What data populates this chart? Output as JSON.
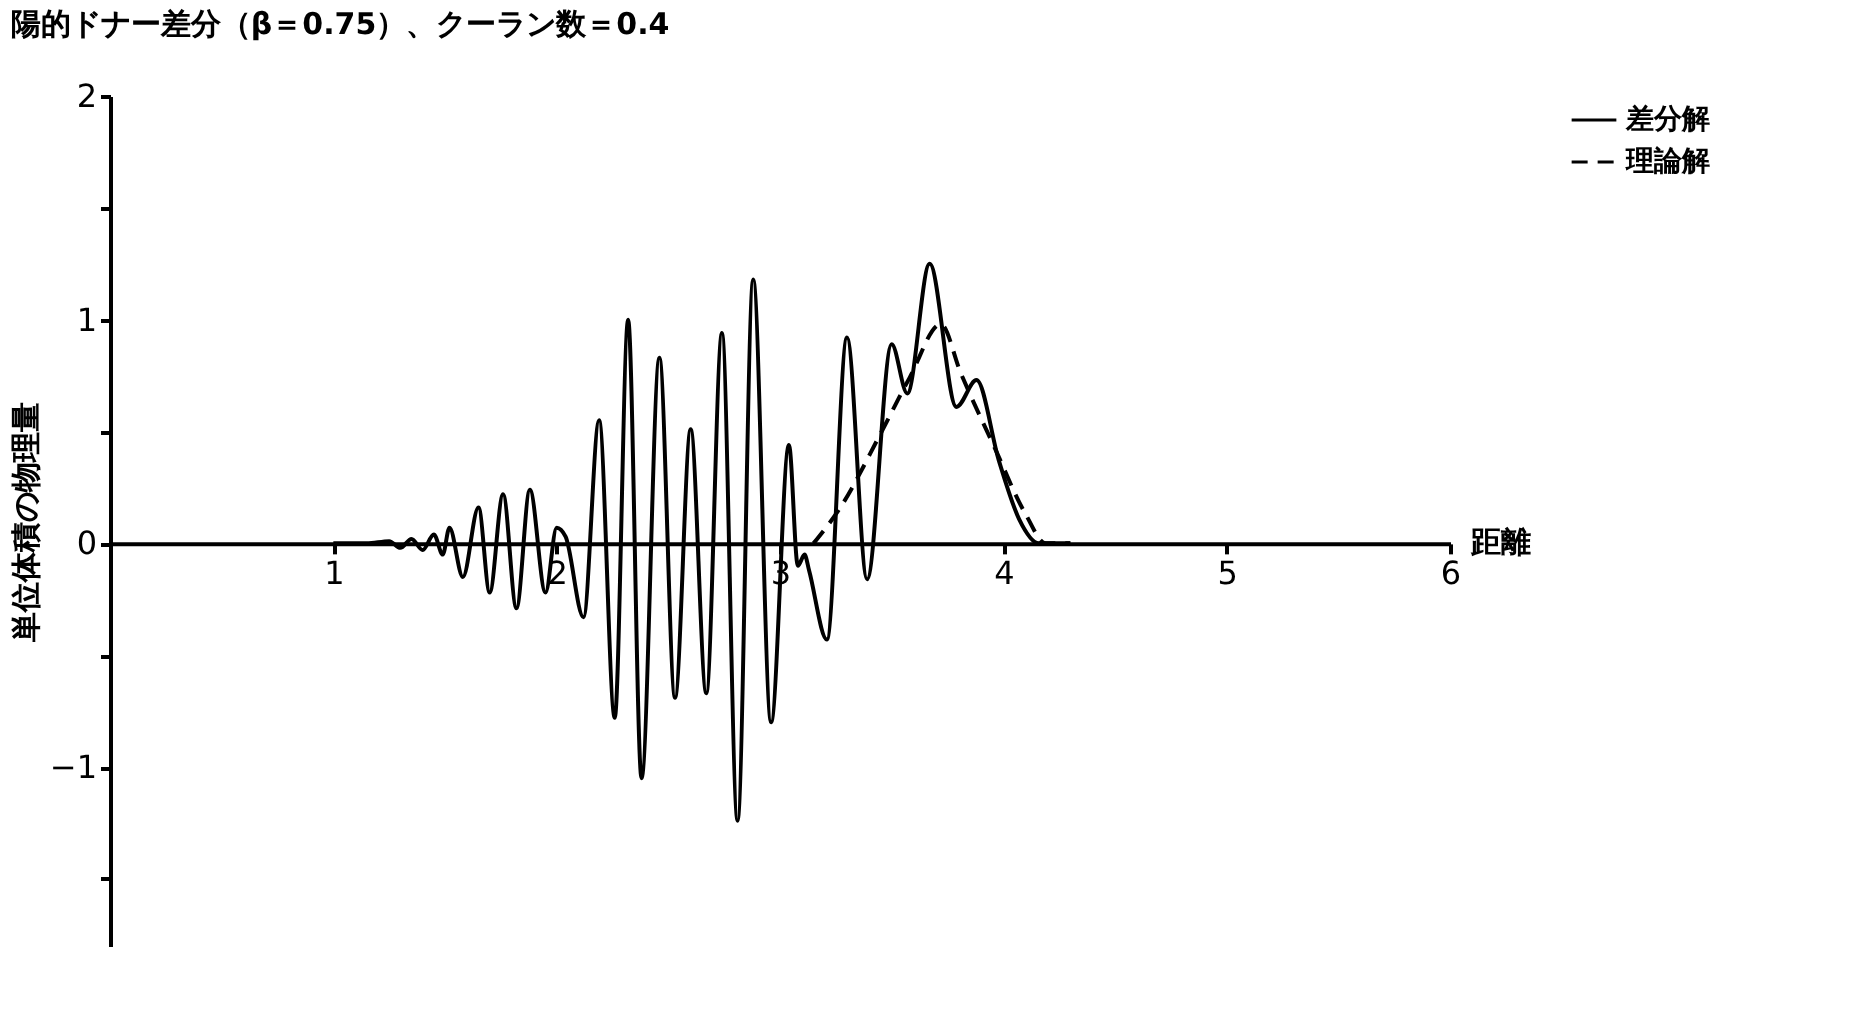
{
  "chart_data": {
    "type": "line",
    "title": "陽的ドナー差分（β＝0.75）、クーラン数＝0.4",
    "xlabel": "距離",
    "ylabel": "単位体積の物理量",
    "xlim": [
      0,
      6
    ],
    "xticks": [
      1,
      2,
      3,
      4,
      5,
      6
    ],
    "ylim": [
      -1.8,
      2
    ],
    "yticks": [
      {
        "value": -1.5,
        "label": null
      },
      -1,
      {
        "value": -0.5,
        "label": null
      },
      0,
      {
        "value": 0.5,
        "label": null
      },
      1,
      {
        "value": 1.5,
        "label": null
      },
      2
    ],
    "grid": false,
    "legend": "right",
    "series": [
      {
        "name": "差分解",
        "color": "#000000",
        "line_style": "solid",
        "x": [
          1.0,
          1.15,
          1.25,
          1.3,
          1.35,
          1.4,
          1.45,
          1.49,
          1.52,
          1.58,
          1.65,
          1.7,
          1.76,
          1.82,
          1.88,
          1.95,
          2.0,
          2.04,
          2.12,
          2.19,
          2.26,
          2.32,
          2.38,
          2.46,
          2.53,
          2.6,
          2.67,
          2.74,
          2.81,
          2.88,
          2.96,
          3.04,
          3.08,
          3.11,
          3.13,
          3.21,
          3.3,
          3.39,
          3.5,
          3.57,
          3.67,
          3.79,
          3.88,
          3.98,
          4.07,
          4.16,
          4.3
        ],
        "values": [
          0,
          0,
          0.01,
          -0.02,
          0.02,
          -0.03,
          0.04,
          -0.05,
          0.07,
          -0.15,
          0.16,
          -0.22,
          0.22,
          -0.29,
          0.24,
          -0.22,
          0.07,
          0.03,
          -0.33,
          0.55,
          -0.78,
          1.0,
          -1.05,
          0.83,
          -0.69,
          0.51,
          -0.67,
          0.94,
          -1.24,
          1.18,
          -0.8,
          0.44,
          -0.1,
          -0.05,
          -0.12,
          -0.43,
          0.92,
          -0.16,
          0.89,
          0.67,
          1.25,
          0.61,
          0.73,
          0.37,
          0.11,
          0,
          0
        ]
      },
      {
        "name": "理論解",
        "color": "#000000",
        "line_style": "dashed",
        "x": [
          3.15,
          3.27,
          3.45,
          3.58,
          3.72,
          3.81,
          3.96,
          4.1,
          4.19,
          4.3
        ],
        "values": [
          0,
          0.16,
          0.49,
          0.74,
          0.98,
          0.76,
          0.43,
          0.13,
          0,
          0
        ]
      }
    ]
  }
}
